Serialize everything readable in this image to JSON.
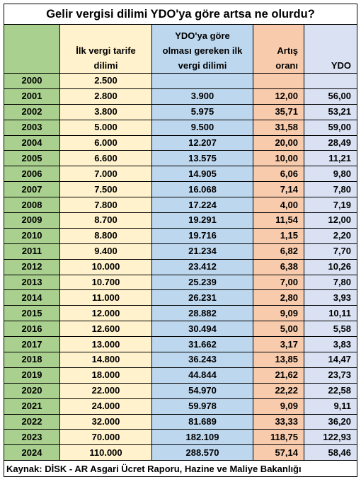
{
  "title": "Gelir vergisi dilimi YDO'ya göre artsa ne olurdu?",
  "headers": {
    "year": "",
    "ilk_line1": "İlk vergi tarife",
    "ilk_line2": "dilimi",
    "gore_line1": "YDO'ya göre",
    "gore_line2": "olması gereken ilk",
    "gore_line3": "vergi dilimi",
    "artis_line1": "Artış",
    "artis_line2": "oranı",
    "ydo": "YDO"
  },
  "rows": [
    {
      "year": "2000",
      "ilk": "2.500",
      "gore": "",
      "artis": "",
      "ydo": ""
    },
    {
      "year": "2001",
      "ilk": "2.800",
      "gore": "3.900",
      "artis": "12,00",
      "ydo": "56,00"
    },
    {
      "year": "2002",
      "ilk": "3.800",
      "gore": "5.975",
      "artis": "35,71",
      "ydo": "53,21"
    },
    {
      "year": "2003",
      "ilk": "5.000",
      "gore": "9.500",
      "artis": "31,58",
      "ydo": "59,00"
    },
    {
      "year": "2004",
      "ilk": "6.000",
      "gore": "12.207",
      "artis": "20,00",
      "ydo": "28,49"
    },
    {
      "year": "2005",
      "ilk": "6.600",
      "gore": "13.575",
      "artis": "10,00",
      "ydo": "11,21"
    },
    {
      "year": "2006",
      "ilk": "7.000",
      "gore": "14.905",
      "artis": "6,06",
      "ydo": "9,80"
    },
    {
      "year": "2007",
      "ilk": "7.500",
      "gore": "16.068",
      "artis": "7,14",
      "ydo": "7,80"
    },
    {
      "year": "2008",
      "ilk": "7.800",
      "gore": "17.224",
      "artis": "4,00",
      "ydo": "7,19"
    },
    {
      "year": "2009",
      "ilk": "8.700",
      "gore": "19.291",
      "artis": "11,54",
      "ydo": "12,00"
    },
    {
      "year": "2010",
      "ilk": "8.800",
      "gore": "19.716",
      "artis": "1,15",
      "ydo": "2,20"
    },
    {
      "year": "2011",
      "ilk": "9.400",
      "gore": "21.234",
      "artis": "6,82",
      "ydo": "7,70"
    },
    {
      "year": "2012",
      "ilk": "10.000",
      "gore": "23.412",
      "artis": "6,38",
      "ydo": "10,26"
    },
    {
      "year": "2013",
      "ilk": "10.700",
      "gore": "25.239",
      "artis": "7,00",
      "ydo": "7,80"
    },
    {
      "year": "2014",
      "ilk": "11.000",
      "gore": "26.231",
      "artis": "2,80",
      "ydo": "3,93"
    },
    {
      "year": "2015",
      "ilk": "12.000",
      "gore": "28.882",
      "artis": "9,09",
      "ydo": "10,11"
    },
    {
      "year": "2016",
      "ilk": "12.600",
      "gore": "30.494",
      "artis": "5,00",
      "ydo": "5,58"
    },
    {
      "year": "2017",
      "ilk": "13.000",
      "gore": "31.662",
      "artis": "3,17",
      "ydo": "3,83"
    },
    {
      "year": "2018",
      "ilk": "14.800",
      "gore": "36.243",
      "artis": "13,85",
      "ydo": "14,47"
    },
    {
      "year": "2019",
      "ilk": "18.000",
      "gore": "44.844",
      "artis": "21,62",
      "ydo": "23,73"
    },
    {
      "year": "2020",
      "ilk": "22.000",
      "gore": "54.970",
      "artis": "22,22",
      "ydo": "22,58"
    },
    {
      "year": "2021",
      "ilk": "24.000",
      "gore": "59.978",
      "artis": "9,09",
      "ydo": "9,11"
    },
    {
      "year": "2022",
      "ilk": "32.000",
      "gore": "81.689",
      "artis": "33,33",
      "ydo": "36,20"
    },
    {
      "year": "2023",
      "ilk": "70.000",
      "gore": "182.109",
      "artis": "118,75",
      "ydo": "122,93"
    },
    {
      "year": "2024",
      "ilk": "110.000",
      "gore": "288.570",
      "artis": "57,14",
      "ydo": "58,46"
    }
  ],
  "source": "Kaynak: DİSK - AR Asgari Ücret Raporu, Hazine ve Maliye Bakanlığı",
  "colors": {
    "year_column": "#a9d08e",
    "ilk_column": "#fff2cc",
    "gore_column": "#bdd7ee",
    "artis_column": "#f8cbad",
    "ydo_column": "#d9e1f2"
  }
}
